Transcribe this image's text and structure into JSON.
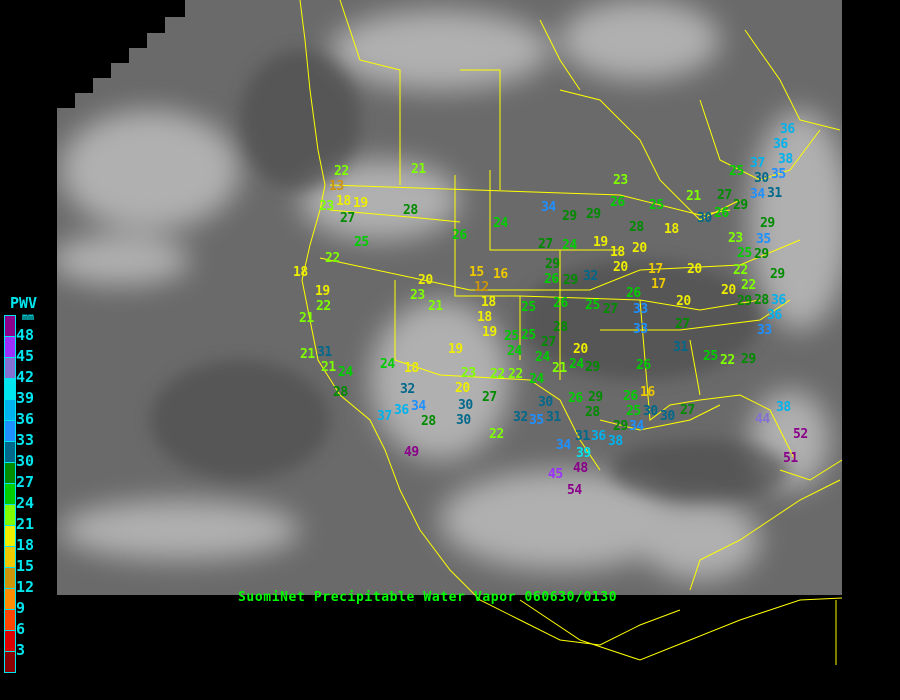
{
  "title": "SuomiNet Precipitable Water Vapor 060630/0130",
  "legend": {
    "title": "PWV",
    "unit": "mm",
    "labels": [
      "48",
      "45",
      "42",
      "39",
      "36",
      "33",
      "30",
      "27",
      "24",
      "21",
      "18",
      "15",
      "12",
      "9",
      "6",
      "3"
    ],
    "colors": [
      "#8b008b",
      "#9b30ff",
      "#8470d0",
      "#00e5ee",
      "#00b2ee",
      "#1e90ff",
      "#00688b",
      "#008b00",
      "#00cd00",
      "#7fff00",
      "#eeee00",
      "#eec900",
      "#cd950c",
      "#ff8c00",
      "#ff4500",
      "#dd0000",
      "#8b0000"
    ]
  },
  "colors": {
    "boundaries": "#ffff00",
    "title": "#00ff00",
    "legend_text": "#00e5ee"
  },
  "stations": [
    {
      "value": "21"
    },
    {
      "value": "22"
    },
    {
      "value": "13"
    },
    {
      "value": "18"
    },
    {
      "value": "19"
    },
    {
      "value": "23"
    },
    {
      "value": "27"
    },
    {
      "value": "28"
    },
    {
      "value": "24"
    },
    {
      "value": "26"
    },
    {
      "value": "25"
    },
    {
      "value": "22"
    },
    {
      "value": "18"
    },
    {
      "value": "16"
    },
    {
      "value": "20"
    },
    {
      "value": "15"
    },
    {
      "value": "12"
    },
    {
      "value": "19"
    },
    {
      "value": "22"
    },
    {
      "value": "23"
    },
    {
      "value": "21"
    },
    {
      "value": "18"
    },
    {
      "value": "18"
    },
    {
      "value": "19"
    },
    {
      "value": "21"
    },
    {
      "value": "25"
    },
    {
      "value": "23"
    },
    {
      "value": "34"
    },
    {
      "value": "29"
    },
    {
      "value": "29"
    },
    {
      "value": "26"
    },
    {
      "value": "25"
    },
    {
      "value": "21"
    },
    {
      "value": "27"
    },
    {
      "value": "30"
    },
    {
      "value": "26"
    },
    {
      "value": "29"
    },
    {
      "value": "28"
    },
    {
      "value": "18"
    },
    {
      "value": "27"
    },
    {
      "value": "24"
    },
    {
      "value": "19"
    },
    {
      "value": "18"
    },
    {
      "value": "20"
    },
    {
      "value": "23"
    },
    {
      "value": "35"
    },
    {
      "value": "25"
    },
    {
      "value": "29"
    },
    {
      "value": "29"
    },
    {
      "value": "29"
    },
    {
      "value": "32"
    },
    {
      "value": "20"
    },
    {
      "value": "17"
    },
    {
      "value": "17"
    },
    {
      "value": "20"
    },
    {
      "value": "26"
    },
    {
      "value": "29"
    },
    {
      "value": "22"
    },
    {
      "value": "22"
    },
    {
      "value": "20"
    },
    {
      "value": "29"
    },
    {
      "value": "25"
    },
    {
      "value": "26"
    },
    {
      "value": "25"
    },
    {
      "value": "27"
    },
    {
      "value": "26"
    },
    {
      "value": "33"
    },
    {
      "value": "20"
    },
    {
      "value": "29"
    },
    {
      "value": "28"
    },
    {
      "value": "36"
    },
    {
      "value": "36"
    },
    {
      "value": "33"
    },
    {
      "value": "27"
    },
    {
      "value": "33"
    },
    {
      "value": "31"
    },
    {
      "value": "25"
    },
    {
      "value": "22"
    },
    {
      "value": "29"
    },
    {
      "value": "25"
    },
    {
      "value": "24"
    },
    {
      "value": "21"
    },
    {
      "value": "31"
    },
    {
      "value": "21"
    },
    {
      "value": "24"
    },
    {
      "value": "24"
    },
    {
      "value": "18"
    },
    {
      "value": "19"
    },
    {
      "value": "28"
    },
    {
      "value": "23"
    },
    {
      "value": "20"
    },
    {
      "value": "22"
    },
    {
      "value": "22"
    },
    {
      "value": "24"
    },
    {
      "value": "27"
    },
    {
      "value": "32"
    },
    {
      "value": "30"
    },
    {
      "value": "30"
    },
    {
      "value": "37"
    },
    {
      "value": "36"
    },
    {
      "value": "34"
    },
    {
      "value": "28"
    },
    {
      "value": "32"
    },
    {
      "value": "30"
    },
    {
      "value": "35"
    },
    {
      "value": "31"
    },
    {
      "value": "26"
    },
    {
      "value": "29"
    },
    {
      "value": "28"
    },
    {
      "value": "31"
    },
    {
      "value": "36"
    },
    {
      "value": "38"
    },
    {
      "value": "22"
    },
    {
      "value": "34"
    },
    {
      "value": "39"
    },
    {
      "value": "49"
    },
    {
      "value": "45"
    },
    {
      "value": "48"
    },
    {
      "value": "54"
    },
    {
      "value": "26"
    },
    {
      "value": "16"
    },
    {
      "value": "26"
    },
    {
      "value": "25"
    },
    {
      "value": "29"
    },
    {
      "value": "34"
    },
    {
      "value": "30"
    },
    {
      "value": "30"
    },
    {
      "value": "27"
    },
    {
      "value": "38"
    },
    {
      "value": "44"
    },
    {
      "value": "52"
    },
    {
      "value": "51"
    },
    {
      "value": "36"
    },
    {
      "value": "36"
    },
    {
      "value": "38"
    },
    {
      "value": "35"
    },
    {
      "value": "37"
    },
    {
      "value": "25"
    },
    {
      "value": "30"
    },
    {
      "value": "34"
    },
    {
      "value": "31"
    },
    {
      "value": "28"
    },
    {
      "value": "27"
    },
    {
      "value": "24"
    },
    {
      "value": "20"
    },
    {
      "value": "21"
    },
    {
      "value": "24"
    },
    {
      "value": "29"
    }
  ]
}
